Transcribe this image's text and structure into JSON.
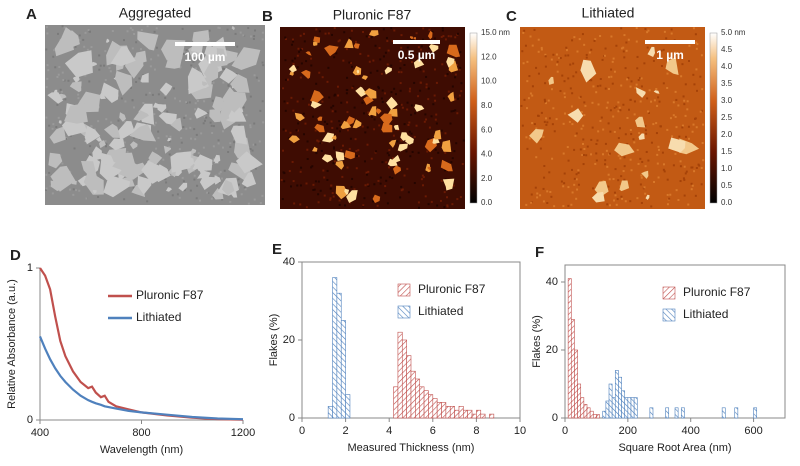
{
  "panels": [
    {
      "label": "A",
      "title": "Aggregated",
      "scale_bar": "100 µm"
    },
    {
      "label": "B",
      "title": "Pluronic F87",
      "scale_bar": "0.5 µm",
      "colorbar": [
        "15.0 nm",
        "12.0",
        "10.0",
        "8.0",
        "6.0",
        "4.0",
        "2.0",
        "0.0"
      ]
    },
    {
      "label": "C",
      "title": "Lithiated",
      "scale_bar": "1 µm",
      "colorbar": [
        "5.0 nm",
        "4.5",
        "4.0",
        "3.5",
        "3.0",
        "2.5",
        "2.0",
        "1.5",
        "1.0",
        "0.5",
        "0.0"
      ]
    }
  ],
  "chart_data": [
    {
      "type": "line",
      "panel_label": "D",
      "x": [
        400,
        420,
        440,
        460,
        480,
        500,
        530,
        560,
        590,
        605,
        620,
        640,
        655,
        670,
        700,
        750,
        800,
        900,
        1000,
        1100,
        1200
      ],
      "series": [
        {
          "name": "Pluronic F87",
          "color": "#c0504d",
          "values": [
            1.0,
            0.95,
            0.86,
            0.68,
            0.52,
            0.42,
            0.32,
            0.25,
            0.21,
            0.22,
            0.18,
            0.15,
            0.16,
            0.12,
            0.09,
            0.07,
            0.05,
            0.03,
            0.015,
            0.006,
            0.002
          ]
        },
        {
          "name": "Lithiated",
          "color": "#4f81bd",
          "values": [
            0.55,
            0.47,
            0.4,
            0.34,
            0.29,
            0.25,
            0.2,
            0.16,
            0.13,
            0.12,
            0.11,
            0.1,
            0.09,
            0.085,
            0.075,
            0.06,
            0.05,
            0.035,
            0.02,
            0.01,
            0.005
          ]
        }
      ],
      "xlim": [
        400,
        1200
      ],
      "xticks": [
        400,
        800,
        1200
      ],
      "ylim": [
        0,
        1
      ],
      "yticks": [
        0,
        1
      ],
      "xlabel": "Wavelength (nm)",
      "ylabel": "Relative Absorbance (a.u.)",
      "legend": "upper right",
      "frame": false
    },
    {
      "type": "histogram",
      "panel_label": "E",
      "series": [
        {
          "name": "Pluronic F87",
          "color": "#c0504d",
          "bins": [
            4.2,
            4.4,
            4.6,
            4.8,
            5.0,
            5.2,
            5.4,
            5.6,
            5.8,
            6.0,
            6.2,
            6.4,
            6.6,
            6.8,
            7.0,
            7.2,
            7.4,
            7.6,
            7.8,
            8.0,
            8.2,
            8.4,
            8.6,
            8.8
          ],
          "values": [
            8,
            22,
            20,
            16,
            12,
            10,
            8,
            7,
            6,
            5,
            4,
            4,
            3,
            3,
            2,
            3,
            2,
            2,
            1,
            2,
            1,
            0,
            1
          ]
        },
        {
          "name": "Lithiated",
          "color": "#4f81bd",
          "bins": [
            1.2,
            1.4,
            1.6,
            1.8,
            2.0,
            2.2
          ],
          "values": [
            3,
            36,
            32,
            25,
            6
          ]
        }
      ],
      "xlim": [
        0,
        10
      ],
      "xticks": [
        0,
        2,
        4,
        6,
        8,
        10
      ],
      "ylim": [
        0,
        40
      ],
      "yticks": [
        0,
        20,
        40
      ],
      "xlabel": "Measured Thickness (nm)",
      "ylabel": "Flakes (%)",
      "legend": "upper right",
      "frame": true
    },
    {
      "type": "histogram",
      "panel_label": "F",
      "series": [
        {
          "name": "Pluronic F87",
          "color": "#c0504d",
          "bins": [
            10,
            20,
            30,
            40,
            50,
            60,
            70,
            80,
            90,
            100,
            110
          ],
          "values": [
            41,
            29,
            20,
            10,
            6,
            4,
            3,
            2,
            1,
            1
          ]
        },
        {
          "name": "Lithiated",
          "color": "#4f81bd",
          "bins": [
            120,
            130,
            140,
            150,
            160,
            170,
            180,
            190,
            200,
            210,
            220,
            230,
            270,
            280,
            320,
            330,
            350,
            360,
            370,
            380,
            500,
            510,
            540,
            550,
            600,
            610
          ],
          "values": [
            2,
            5,
            10,
            6,
            14,
            12,
            8,
            6,
            6,
            6,
            6,
            0,
            3,
            0,
            3,
            0,
            3,
            0,
            3,
            0,
            3,
            0,
            3,
            0,
            3
          ]
        }
      ],
      "xlim": [
        0,
        700
      ],
      "xticks": [
        0,
        200,
        400,
        600
      ],
      "ylim": [
        0,
        45
      ],
      "yticks": [
        0,
        20,
        40
      ],
      "xlabel": "Square Root Area (nm)",
      "ylabel": "Flakes (%)",
      "legend": "upper right",
      "frame": true
    }
  ]
}
